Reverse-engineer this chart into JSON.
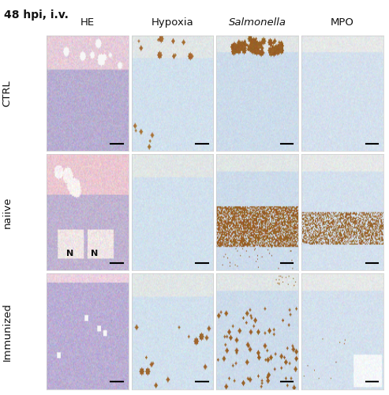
{
  "title": "48 hpi, i.v.",
  "col_headers": [
    "HE",
    "Hypoxia",
    "Salmonella",
    "MPO"
  ],
  "col_headers_italic": [
    false,
    false,
    true,
    false
  ],
  "row_labels": [
    "CTRL",
    "naiive",
    "Immunized"
  ],
  "background_color": "#ffffff",
  "title_fontsize": 10,
  "col_header_fontsize": 9.5,
  "row_label_fontsize": 9.5,
  "n_rows": 3,
  "n_cols": 4,
  "scale_bar_color": "#000000"
}
